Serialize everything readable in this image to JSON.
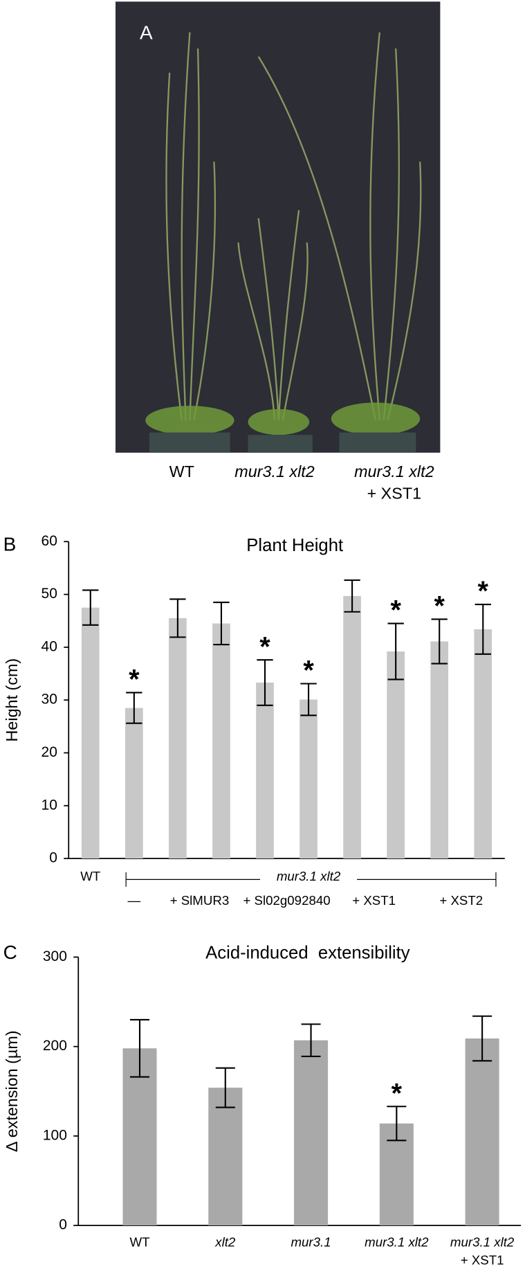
{
  "panel_a": {
    "panel": "A",
    "labels": [
      [
        "WT"
      ],
      [
        "mur3.1 xlt2"
      ],
      [
        "mur3.1 xlt2",
        "+ XST1"
      ]
    ]
  },
  "chart_data": [
    {
      "type": "bar",
      "panel": "B",
      "title": "Plant Height",
      "y_label": "Height (cm)",
      "categories": [
        "WT",
        "—",
        "+ SlMUR3",
        null,
        "+ Sl02g092840",
        null,
        "+ XST1",
        null,
        "+ XST2",
        null
      ],
      "group_label": "mur3.1 xlt2",
      "values": [
        47.5,
        28.5,
        45.5,
        44.5,
        33.3,
        30.1,
        49.7,
        39.2,
        41.1,
        43.4
      ],
      "errors": [
        3.3,
        2.9,
        3.6,
        4.0,
        4.3,
        3.0,
        3.0,
        5.3,
        4.2,
        4.7
      ],
      "significance": [
        null,
        "*",
        null,
        null,
        "*",
        "*",
        null,
        "*",
        "*",
        "*"
      ],
      "color": "#c8c8c8",
      "ylim": [
        0,
        60
      ],
      "yticks": [
        0,
        10,
        20,
        30,
        40,
        50,
        60
      ]
    },
    {
      "type": "bar",
      "panel": "C",
      "title": "Acid-induced  extensibility",
      "y_label": "Δ extension (µm)",
      "categories": [
        "WT",
        "xlt2",
        "mur3.1",
        "mur3.1 xlt2",
        "mur3.1 xlt2"
      ],
      "category_sublabels": [
        null,
        null,
        null,
        null,
        "+ XST1"
      ],
      "values": [
        198,
        154,
        207,
        114,
        209
      ],
      "errors": [
        32,
        22,
        18,
        19,
        25
      ],
      "significance": [
        null,
        null,
        null,
        "*",
        null
      ],
      "color": "#a9a9a9",
      "ylim": [
        0,
        300
      ],
      "yticks": [
        0,
        100,
        200,
        300
      ]
    }
  ]
}
